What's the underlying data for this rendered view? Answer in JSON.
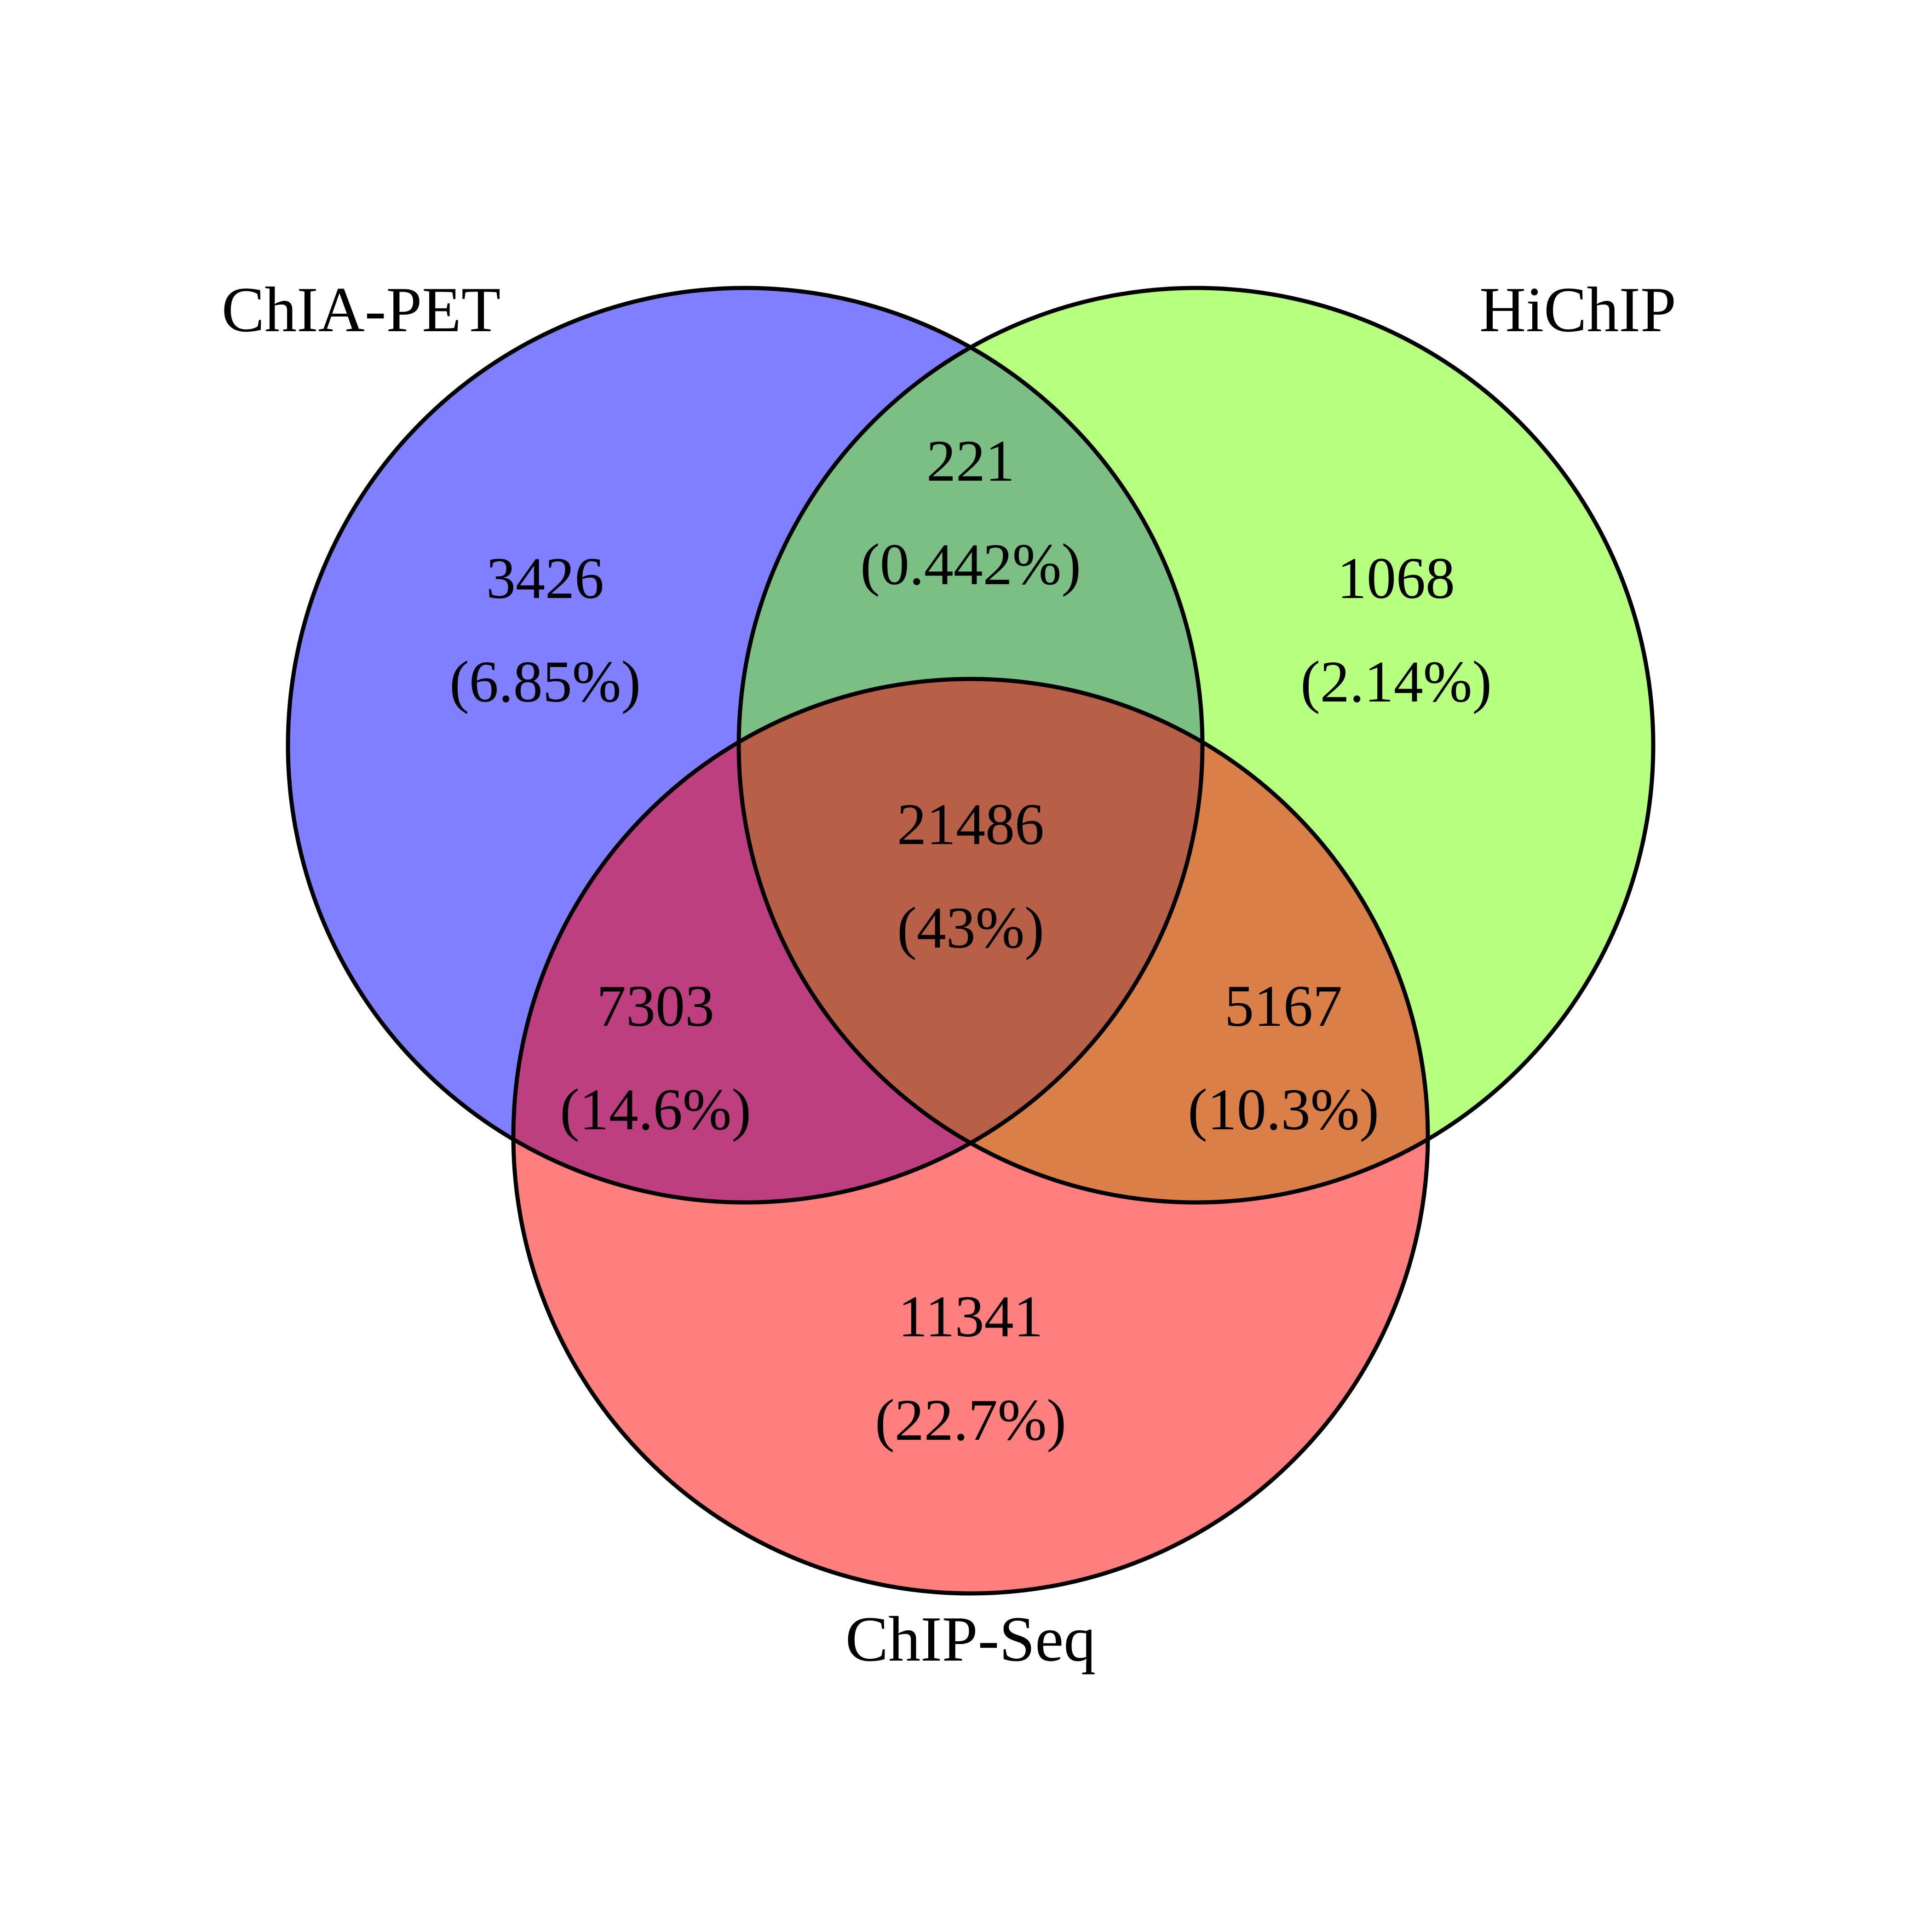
{
  "sets": [
    {
      "key": "a",
      "label": "ChIA-PET",
      "color": "#7f7fff"
    },
    {
      "key": "b",
      "label": "HiChIP",
      "color": "#b6ff7f"
    },
    {
      "key": "c",
      "label": "ChIP-Seq",
      "color": "#ff7f7f"
    }
  ],
  "regions": {
    "a_only": {
      "count": "3426",
      "percent": "(6.85%)",
      "color": "#7f7fff"
    },
    "b_only": {
      "count": "1068",
      "percent": "(2.14%)",
      "color": "#b6ff7f"
    },
    "c_only": {
      "count": "11341",
      "percent": "(22.7%)",
      "color": "#ff7f7f"
    },
    "ab": {
      "count": "221",
      "percent": "(0.442%)",
      "color": "#7bbf85"
    },
    "ac": {
      "count": "7303",
      "percent": "(14.6%)",
      "color": "#bd3f7f"
    },
    "bc": {
      "count": "5167",
      "percent": "(10.3%)",
      "color": "#d97f47"
    },
    "abc": {
      "count": "21486",
      "percent": "(43%)",
      "color": "#b85f47"
    }
  },
  "outline_color": "#000000"
}
